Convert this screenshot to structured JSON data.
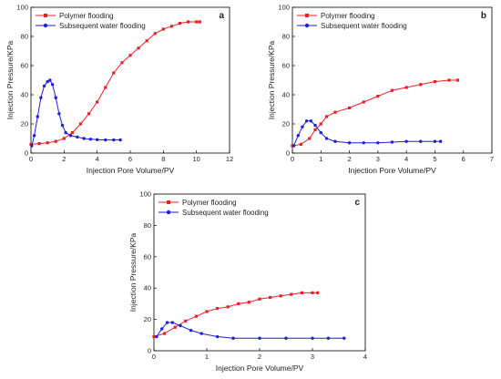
{
  "chart_data": [
    {
      "type": "line",
      "panel_label": "a",
      "xlabel": "Injection Pore Volume/PV",
      "ylabel": "Injection Pressure/KPa",
      "xlim": [
        0,
        12
      ],
      "ylim": [
        0,
        100
      ],
      "xticks": [
        0,
        2,
        4,
        6,
        8,
        10,
        12
      ],
      "yticks": [
        0,
        20,
        40,
        60,
        80,
        100
      ],
      "legend_position": "top-left",
      "series": [
        {
          "name": "Polymer flooding",
          "color": "#e8202a",
          "marker": "square",
          "points": [
            [
              0.0,
              6
            ],
            [
              0.5,
              6.5
            ],
            [
              1.0,
              7
            ],
            [
              1.5,
              8
            ],
            [
              2.0,
              10
            ],
            [
              2.5,
              14
            ],
            [
              3.0,
              20
            ],
            [
              3.5,
              27
            ],
            [
              4.0,
              35
            ],
            [
              4.5,
              45
            ],
            [
              5.0,
              55
            ],
            [
              5.5,
              62
            ],
            [
              6.0,
              67
            ],
            [
              6.5,
              72
            ],
            [
              7.0,
              77
            ],
            [
              7.5,
              82
            ],
            [
              8.0,
              85
            ],
            [
              8.5,
              87
            ],
            [
              9.0,
              89
            ],
            [
              9.5,
              90
            ],
            [
              10.0,
              90
            ],
            [
              10.2,
              90
            ]
          ]
        },
        {
          "name": "Subsequent water flooding",
          "color": "#1f1fd6",
          "marker": "circle",
          "points": [
            [
              0.05,
              5
            ],
            [
              0.2,
              12
            ],
            [
              0.4,
              25
            ],
            [
              0.6,
              38
            ],
            [
              0.8,
              46
            ],
            [
              1.0,
              49
            ],
            [
              1.15,
              50
            ],
            [
              1.3,
              47
            ],
            [
              1.5,
              38
            ],
            [
              1.7,
              27
            ],
            [
              1.9,
              19
            ],
            [
              2.1,
              14
            ],
            [
              2.4,
              12
            ],
            [
              2.8,
              11
            ],
            [
              3.2,
              10
            ],
            [
              3.6,
              9.5
            ],
            [
              4.0,
              9.2
            ],
            [
              4.5,
              9
            ],
            [
              5.0,
              9
            ],
            [
              5.4,
              9
            ]
          ]
        }
      ]
    },
    {
      "type": "line",
      "panel_label": "b",
      "xlabel": "Injection Pore Volume/PV",
      "ylabel": "Injection Pressure/KPa",
      "xlim": [
        0,
        7
      ],
      "ylim": [
        0,
        100
      ],
      "xticks": [
        0,
        1,
        2,
        3,
        4,
        5,
        6,
        7
      ],
      "yticks": [
        0,
        20,
        40,
        60,
        80,
        100
      ],
      "legend_position": "top-left",
      "series": [
        {
          "name": "Polymer flooding",
          "color": "#e8202a",
          "marker": "square",
          "points": [
            [
              0.0,
              5
            ],
            [
              0.3,
              6
            ],
            [
              0.6,
              10
            ],
            [
              0.8,
              16
            ],
            [
              1.0,
              20
            ],
            [
              1.2,
              25
            ],
            [
              1.5,
              28
            ],
            [
              2.0,
              31
            ],
            [
              2.5,
              35
            ],
            [
              3.0,
              39
            ],
            [
              3.5,
              43
            ],
            [
              4.0,
              45
            ],
            [
              4.5,
              47
            ],
            [
              5.0,
              49
            ],
            [
              5.5,
              50
            ],
            [
              5.8,
              50
            ]
          ]
        },
        {
          "name": "Subsequent water flooding",
          "color": "#1f1fd6",
          "marker": "circle",
          "points": [
            [
              0.05,
              5
            ],
            [
              0.2,
              12
            ],
            [
              0.35,
              18
            ],
            [
              0.5,
              22
            ],
            [
              0.65,
              22
            ],
            [
              0.8,
              19
            ],
            [
              1.0,
              14
            ],
            [
              1.2,
              10
            ],
            [
              1.5,
              8
            ],
            [
              2.0,
              7
            ],
            [
              2.5,
              7
            ],
            [
              3.0,
              7
            ],
            [
              3.5,
              7.5
            ],
            [
              4.0,
              8
            ],
            [
              4.5,
              8
            ],
            [
              5.0,
              8
            ],
            [
              5.2,
              8
            ]
          ]
        }
      ]
    },
    {
      "type": "line",
      "panel_label": "c",
      "xlabel": "Injection Pore Volume/PV",
      "ylabel": "Injection Pressure/KPa",
      "xlim": [
        0,
        4
      ],
      "ylim": [
        0,
        100
      ],
      "xticks": [
        0,
        1,
        2,
        3,
        4
      ],
      "yticks": [
        0,
        20,
        40,
        60,
        80,
        100
      ],
      "legend_position": "top-left",
      "series": [
        {
          "name": "Polymer flooding",
          "color": "#e8202a",
          "marker": "square",
          "points": [
            [
              0.0,
              9
            ],
            [
              0.2,
              11
            ],
            [
              0.4,
              15
            ],
            [
              0.6,
              19
            ],
            [
              0.8,
              22
            ],
            [
              1.0,
              25
            ],
            [
              1.2,
              27
            ],
            [
              1.4,
              28
            ],
            [
              1.6,
              30
            ],
            [
              1.8,
              31
            ],
            [
              2.0,
              33
            ],
            [
              2.2,
              34
            ],
            [
              2.4,
              35
            ],
            [
              2.6,
              36
            ],
            [
              2.8,
              37
            ],
            [
              3.0,
              37
            ],
            [
              3.1,
              37
            ]
          ]
        },
        {
          "name": "Subsequent water flooding",
          "color": "#1f1fd6",
          "marker": "circle",
          "points": [
            [
              0.05,
              9
            ],
            [
              0.15,
              14
            ],
            [
              0.25,
              18
            ],
            [
              0.35,
              18
            ],
            [
              0.5,
              16
            ],
            [
              0.7,
              13
            ],
            [
              0.9,
              11
            ],
            [
              1.2,
              9
            ],
            [
              1.5,
              8
            ],
            [
              2.0,
              8
            ],
            [
              2.5,
              8
            ],
            [
              3.0,
              8
            ],
            [
              3.3,
              8
            ],
            [
              3.6,
              8
            ]
          ]
        }
      ]
    }
  ]
}
